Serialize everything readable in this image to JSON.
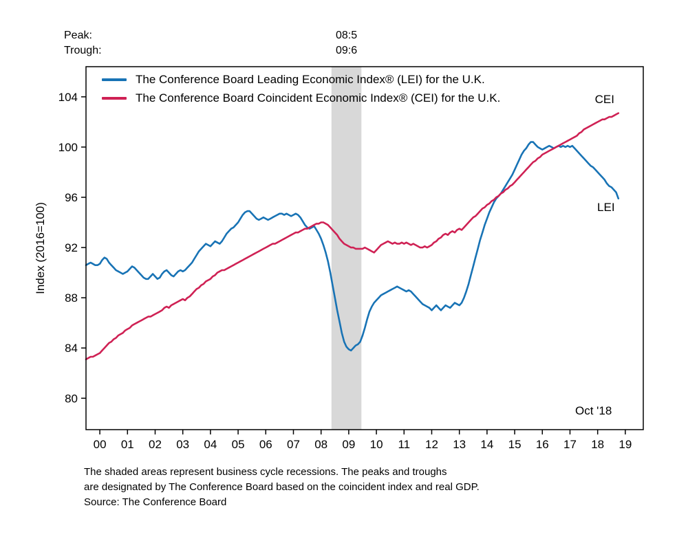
{
  "header": {
    "peak_label": "Peak:",
    "peak_value": "08:5",
    "trough_label": "Trough:",
    "trough_value": "09:6"
  },
  "legend": [
    {
      "label": "The Conference Board Leading Economic Index® (LEI) for the U.K.",
      "color": "#1873b5"
    },
    {
      "label": "The Conference Board Coincident Economic Index® (CEI) for the U.K.",
      "color": "#cf2154"
    }
  ],
  "annotations": {
    "cei_tag": "CEI",
    "lei_tag": "LEI",
    "last_date": "Oct '18"
  },
  "footnote": {
    "line1": "The shaded areas represent business cycle recessions. The peaks and troughs",
    "line2": "are designated by The Conference Board based on the coincident index and real GDP.",
    "line3": "Source: The Conference Board"
  },
  "chart_data": {
    "type": "line",
    "title": "",
    "xlabel": "",
    "ylabel": "Index (2016=100)",
    "x_start": 1999.5,
    "x_step_months": 1,
    "xlim": [
      1999.5,
      2019.65
    ],
    "ylim": [
      77.5,
      106.4
    ],
    "yticks": [
      80,
      84,
      88,
      92,
      96,
      100,
      104
    ],
    "xticks": [
      2000,
      2001,
      2002,
      2003,
      2004,
      2005,
      2006,
      2007,
      2008,
      2009,
      2010,
      2011,
      2012,
      2013,
      2014,
      2015,
      2016,
      2017,
      2018,
      2019
    ],
    "xtick_labels": [
      "00",
      "01",
      "02",
      "03",
      "04",
      "05",
      "06",
      "07",
      "08",
      "09",
      "10",
      "11",
      "12",
      "13",
      "14",
      "15",
      "16",
      "17",
      "18",
      "19"
    ],
    "grid": false,
    "legend_position": "upper-left-inside",
    "recession_bands": [
      [
        2008.375,
        2009.458
      ]
    ],
    "band_color": "#d8d8d8",
    "series": [
      {
        "name": "LEI",
        "color": "#1873b5",
        "values": [
          90.6,
          90.7,
          90.8,
          90.7,
          90.6,
          90.6,
          90.7,
          91.0,
          91.2,
          91.1,
          90.8,
          90.6,
          90.4,
          90.2,
          90.1,
          90.0,
          89.9,
          90.0,
          90.1,
          90.3,
          90.5,
          90.4,
          90.2,
          90.0,
          89.8,
          89.6,
          89.5,
          89.5,
          89.7,
          89.9,
          89.7,
          89.5,
          89.6,
          89.9,
          90.1,
          90.2,
          90.0,
          89.8,
          89.7,
          89.9,
          90.1,
          90.2,
          90.1,
          90.2,
          90.4,
          90.6,
          90.8,
          91.1,
          91.4,
          91.7,
          91.9,
          92.1,
          92.3,
          92.2,
          92.1,
          92.3,
          92.5,
          92.4,
          92.3,
          92.5,
          92.8,
          93.1,
          93.3,
          93.5,
          93.6,
          93.8,
          94.0,
          94.3,
          94.6,
          94.8,
          94.9,
          94.9,
          94.7,
          94.5,
          94.3,
          94.2,
          94.3,
          94.4,
          94.3,
          94.2,
          94.3,
          94.4,
          94.5,
          94.6,
          94.7,
          94.7,
          94.6,
          94.7,
          94.6,
          94.5,
          94.6,
          94.7,
          94.6,
          94.4,
          94.1,
          93.8,
          93.6,
          93.5,
          93.6,
          93.7,
          93.4,
          93.1,
          92.7,
          92.2,
          91.6,
          90.9,
          90.0,
          89.0,
          88.0,
          87.0,
          86.1,
          85.2,
          84.5,
          84.1,
          83.9,
          83.8,
          84.0,
          84.2,
          84.3,
          84.5,
          85.0,
          85.6,
          86.3,
          86.9,
          87.3,
          87.6,
          87.8,
          88.0,
          88.2,
          88.3,
          88.4,
          88.5,
          88.6,
          88.7,
          88.8,
          88.9,
          88.8,
          88.7,
          88.6,
          88.5,
          88.6,
          88.5,
          88.3,
          88.1,
          87.9,
          87.7,
          87.5,
          87.4,
          87.3,
          87.2,
          87.0,
          87.2,
          87.4,
          87.2,
          87.0,
          87.2,
          87.4,
          87.3,
          87.2,
          87.4,
          87.6,
          87.5,
          87.4,
          87.6,
          88.0,
          88.5,
          89.1,
          89.8,
          90.5,
          91.2,
          91.9,
          92.6,
          93.2,
          93.8,
          94.3,
          94.8,
          95.2,
          95.6,
          95.9,
          96.1,
          96.3,
          96.6,
          96.9,
          97.2,
          97.5,
          97.8,
          98.2,
          98.6,
          99.0,
          99.4,
          99.7,
          99.9,
          100.2,
          100.4,
          100.4,
          100.2,
          100.0,
          99.9,
          99.8,
          99.9,
          100.0,
          100.1,
          100.0,
          99.9,
          100.0,
          100.1,
          100.0,
          100.1,
          100.0,
          100.1,
          100.0,
          100.1,
          99.9,
          99.7,
          99.5,
          99.3,
          99.1,
          98.9,
          98.7,
          98.5,
          98.4,
          98.2,
          98.0,
          97.8,
          97.6,
          97.4,
          97.1,
          96.9,
          96.8,
          96.6,
          96.4,
          95.9
        ]
      },
      {
        "name": "CEI",
        "color": "#cf2154",
        "values": [
          83.1,
          83.2,
          83.3,
          83.3,
          83.4,
          83.5,
          83.6,
          83.8,
          84.0,
          84.2,
          84.4,
          84.5,
          84.7,
          84.8,
          85.0,
          85.1,
          85.2,
          85.4,
          85.5,
          85.6,
          85.8,
          85.9,
          86.0,
          86.1,
          86.2,
          86.3,
          86.4,
          86.5,
          86.5,
          86.6,
          86.7,
          86.8,
          86.9,
          87.0,
          87.2,
          87.3,
          87.2,
          87.4,
          87.5,
          87.6,
          87.7,
          87.8,
          87.9,
          87.8,
          88.0,
          88.1,
          88.3,
          88.5,
          88.7,
          88.8,
          89.0,
          89.1,
          89.3,
          89.4,
          89.5,
          89.7,
          89.8,
          90.0,
          90.1,
          90.2,
          90.2,
          90.3,
          90.4,
          90.5,
          90.6,
          90.7,
          90.8,
          90.9,
          91.0,
          91.1,
          91.2,
          91.3,
          91.4,
          91.5,
          91.6,
          91.7,
          91.8,
          91.9,
          92.0,
          92.1,
          92.2,
          92.3,
          92.3,
          92.4,
          92.5,
          92.6,
          92.7,
          92.8,
          92.9,
          93.0,
          93.1,
          93.2,
          93.2,
          93.3,
          93.4,
          93.5,
          93.5,
          93.6,
          93.7,
          93.8,
          93.9,
          93.9,
          94.0,
          94.0,
          93.9,
          93.8,
          93.6,
          93.4,
          93.2,
          93.0,
          92.7,
          92.5,
          92.3,
          92.2,
          92.1,
          92.0,
          92.0,
          91.9,
          91.9,
          91.9,
          91.9,
          92.0,
          91.9,
          91.8,
          91.7,
          91.6,
          91.8,
          92.0,
          92.2,
          92.3,
          92.4,
          92.5,
          92.4,
          92.3,
          92.4,
          92.3,
          92.3,
          92.4,
          92.3,
          92.4,
          92.3,
          92.2,
          92.3,
          92.2,
          92.1,
          92.0,
          92.0,
          92.1,
          92.0,
          92.1,
          92.2,
          92.4,
          92.5,
          92.7,
          92.8,
          93.0,
          93.1,
          93.0,
          93.2,
          93.3,
          93.2,
          93.4,
          93.5,
          93.4,
          93.6,
          93.8,
          94.0,
          94.2,
          94.4,
          94.5,
          94.7,
          94.9,
          95.1,
          95.2,
          95.4,
          95.5,
          95.7,
          95.8,
          96.0,
          96.1,
          96.3,
          96.4,
          96.6,
          96.7,
          96.9,
          97.0,
          97.2,
          97.4,
          97.6,
          97.8,
          98.0,
          98.2,
          98.4,
          98.6,
          98.8,
          98.9,
          99.1,
          99.2,
          99.4,
          99.5,
          99.6,
          99.7,
          99.8,
          99.9,
          100.0,
          100.1,
          100.2,
          100.3,
          100.4,
          100.5,
          100.6,
          100.7,
          100.8,
          100.9,
          101.1,
          101.2,
          101.4,
          101.5,
          101.6,
          101.7,
          101.8,
          101.9,
          102.0,
          102.1,
          102.2,
          102.2,
          102.3,
          102.4,
          102.4,
          102.5,
          102.6,
          102.7
        ]
      }
    ]
  }
}
